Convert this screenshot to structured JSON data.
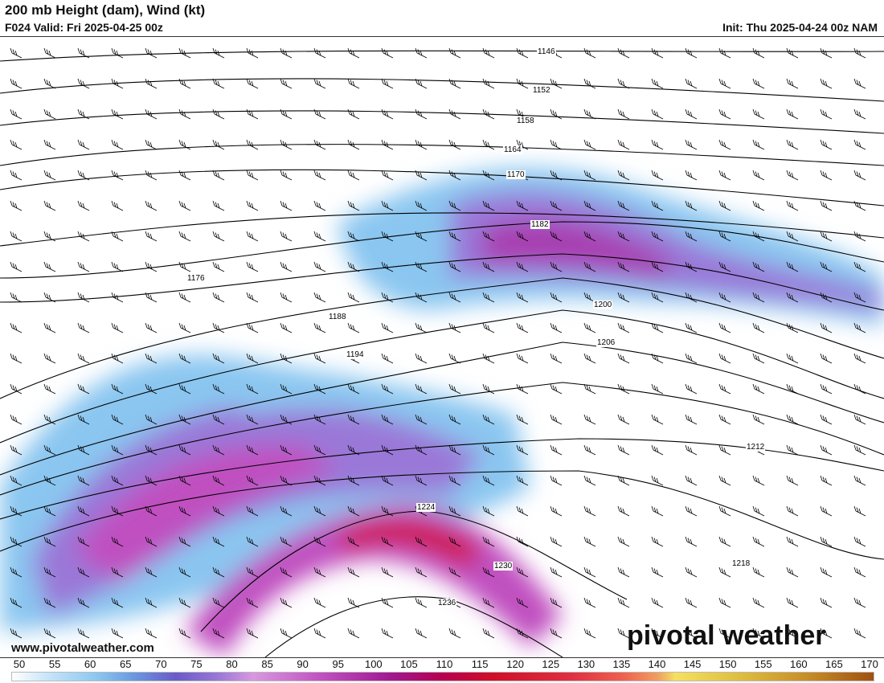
{
  "header": {
    "title": "200 mb Height (dam), Wind (kt)",
    "valid": "F024 Valid: Fri 2025-04-25 00z",
    "init": "Init: Thu 2025-04-24 00z NAM"
  },
  "map": {
    "variable": "200 mb geopotential height contours and wind speed shading with wind barbs",
    "contour_labels": [
      "1146",
      "1152",
      "1158",
      "1164",
      "1170",
      "1176",
      "1182",
      "1188",
      "1194",
      "1200",
      "1206",
      "1212",
      "1218",
      "1224",
      "1230",
      "1236"
    ]
  },
  "footer": {
    "website": "www.pivotalweather.com",
    "logo": "pivotal weather"
  },
  "colorbar": {
    "ticks": [
      "50",
      "55",
      "60",
      "65",
      "70",
      "75",
      "80",
      "85",
      "90",
      "95",
      "100",
      "105",
      "110",
      "115",
      "120",
      "125",
      "130",
      "135",
      "140",
      "145",
      "150",
      "155",
      "160",
      "165",
      "170"
    ],
    "colors": {
      "50": "#ffffff",
      "60": "#8ac6f0",
      "70": "#6a5ac8",
      "80": "#d898e0",
      "95": "#a01890",
      "110": "#d01028",
      "135": "#f0a060",
      "140": "#f5e060",
      "170": "#a05010"
    }
  }
}
